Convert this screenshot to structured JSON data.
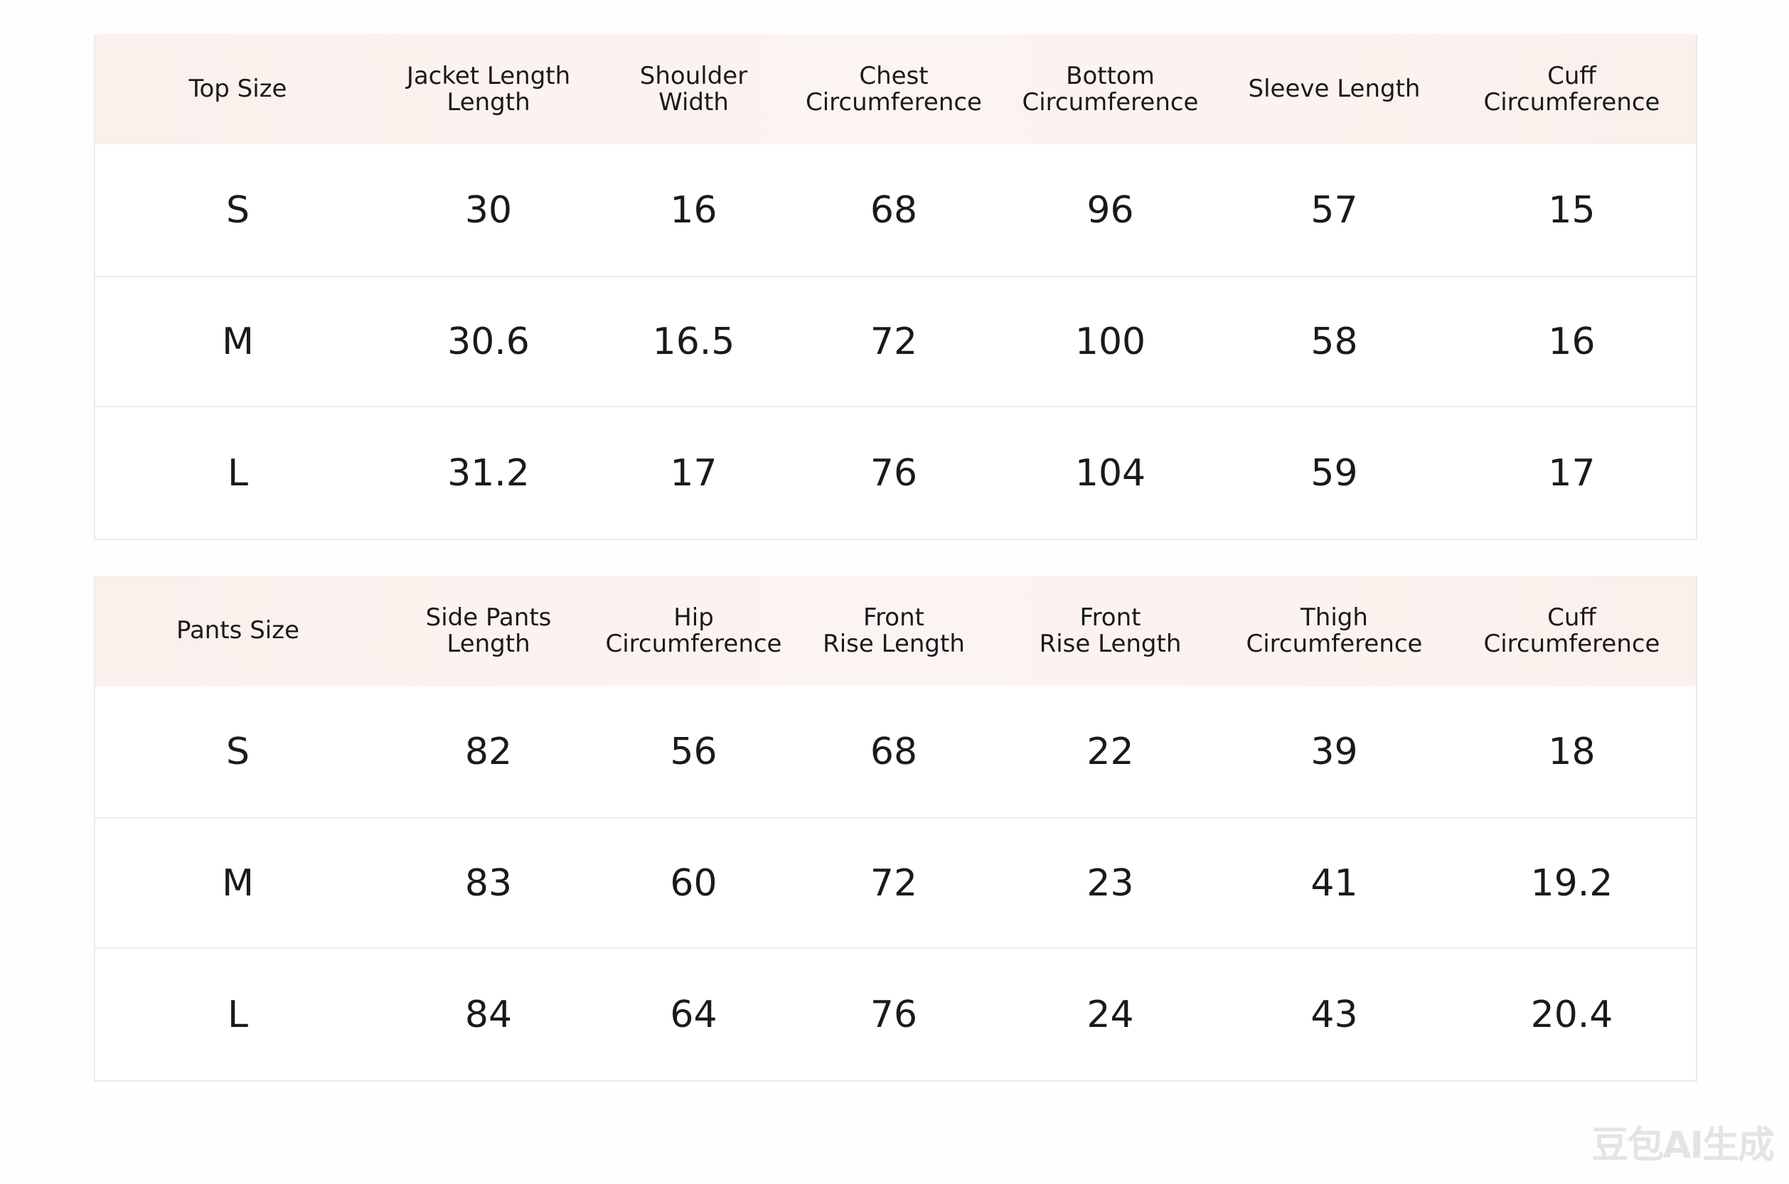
{
  "tables": [
    {
      "headers": [
        "Top Size",
        "Jacket Length\nLength",
        "Shoulder\nWidth",
        "Chest\nCircumference",
        "Bottom\nCircumference",
        "Sleeve Length",
        "Cuff\nCircumference"
      ],
      "rows": [
        [
          "S",
          "30",
          "16",
          "68",
          "96",
          "57",
          "15"
        ],
        [
          "M",
          "30.6",
          "16.5",
          "72",
          "100",
          "58",
          "16"
        ],
        [
          "L",
          "31.2",
          "17",
          "76",
          "104",
          "59",
          "17"
        ]
      ]
    },
    {
      "headers": [
        "Pants Size",
        "Side Pants\nLength",
        "Hip\nCircumference",
        "Front\nRise Length",
        "Front\nRise Length",
        "Thigh\nCircumference",
        "Cuff\nCircumference"
      ],
      "rows": [
        [
          "S",
          "82",
          "56",
          "68",
          "22",
          "39",
          "18"
        ],
        [
          "M",
          "83",
          "60",
          "72",
          "23",
          "41",
          "19.2"
        ],
        [
          "L",
          "84",
          "64",
          "76",
          "24",
          "43",
          "20.4"
        ]
      ]
    }
  ],
  "watermark": "豆包AI生成"
}
